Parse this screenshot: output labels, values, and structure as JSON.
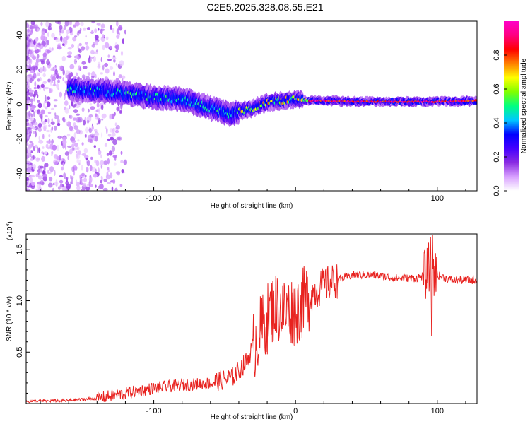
{
  "title": "C2E5.2025.328.08.55.E21",
  "chart_data": [
    {
      "type": "heatmap",
      "title": "C2E5.2025.328.08.55.E21",
      "xlabel": "Height of straight line (km)",
      "ylabel": "Frequency (Hz)",
      "xlim": [
        -190,
        128
      ],
      "ylim": [
        -50,
        48
      ],
      "x_ticks": [
        -100,
        0,
        100
      ],
      "x_tick_labels": [
        "-100",
        "",
        "100"
      ],
      "y_ticks": [
        -40,
        -20,
        0,
        20,
        40
      ],
      "y_tick_labels": [
        "-40",
        "-20",
        "0",
        "20",
        "40"
      ],
      "colorbar": {
        "label": "Normalized spectral amplitude",
        "range": [
          0,
          1
        ],
        "ticks": [
          0.0,
          0.2,
          0.4,
          0.6,
          0.8
        ],
        "tick_labels": [
          "0.0",
          "0.2",
          "0.4",
          "0.6",
          "0.8"
        ],
        "colormap": [
          "#ffffff",
          "#d8a0ff",
          "#8a2be2",
          "#4400ff",
          "#0000ff",
          "#00c8ff",
          "#00ff80",
          "#80ff00",
          "#ffff00",
          "#ff8000",
          "#ff0000",
          "#ff0080",
          "#ff00c8"
        ]
      },
      "center_frequency_track": {
        "x": [
          -160,
          -130,
          -100,
          -80,
          -60,
          -45,
          -40,
          -30,
          -20,
          -10,
          0,
          10,
          20,
          50,
          80,
          100,
          128
        ],
        "y": [
          9,
          7,
          4,
          3,
          -2,
          -6,
          -4,
          -2,
          1,
          2,
          3,
          2,
          2,
          1.5,
          1.5,
          1.5,
          2
        ]
      }
    },
    {
      "type": "line",
      "xlabel": "Height of straight line (km)",
      "ylabel": "SNR (10 * v/v)",
      "scale_note": "(x10",
      "scale_exponent": "4",
      "xlim": [
        -190,
        128
      ],
      "ylim": [
        0,
        1.65
      ],
      "x_ticks": [
        -100,
        0,
        100
      ],
      "x_tick_labels": [
        "-100",
        "0",
        "100"
      ],
      "y_ticks": [
        0.5,
        1.0,
        1.5
      ],
      "y_tick_labels": [
        "0.5",
        "1.0",
        "1.5"
      ],
      "series": [
        {
          "name": "SNR",
          "color": "#e8221f",
          "x": [
            -190,
            -160,
            -140,
            -120,
            -100,
            -80,
            -60,
            -45,
            -35,
            -25,
            -15,
            -8,
            0,
            10,
            20,
            30,
            40,
            55,
            70,
            85,
            92,
            96,
            98,
            100,
            110,
            128
          ],
          "y": [
            0.02,
            0.03,
            0.05,
            0.1,
            0.15,
            0.18,
            0.2,
            0.25,
            0.4,
            0.7,
            0.95,
            0.9,
            0.9,
            1.05,
            1.15,
            1.2,
            1.25,
            1.25,
            1.22,
            1.22,
            1.25,
            1.4,
            1.25,
            1.25,
            1.2,
            1.2
          ]
        }
      ]
    }
  ]
}
